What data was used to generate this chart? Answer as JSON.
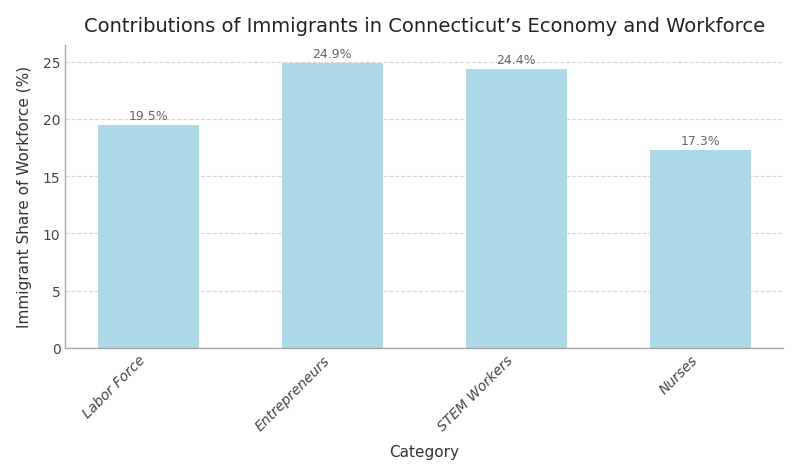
{
  "title": "Contributions of Immigrants in Connecticut’s Economy and Workforce",
  "categories": [
    "Labor Force",
    "Entrepreneurs",
    "STEM Workers",
    "Nurses"
  ],
  "values": [
    19.5,
    24.9,
    24.4,
    17.3
  ],
  "bar_color": "#add8e6",
  "bar_edge_color": "none",
  "xlabel": "Category",
  "ylabel": "Immigrant Share of Workforce (%)",
  "ylim": [
    0,
    26.5
  ],
  "yticks": [
    0,
    5,
    10,
    15,
    20,
    25
  ],
  "grid_color": "#cccccc",
  "grid_linestyle": "--",
  "grid_alpha": 0.8,
  "title_fontsize": 14,
  "axis_label_fontsize": 11,
  "tick_label_fontsize": 10,
  "bar_label_fontsize": 9,
  "bar_label_color": "#666666",
  "background_color": "#ffffff",
  "spine_color": "#aaaaaa",
  "bar_width": 0.55
}
